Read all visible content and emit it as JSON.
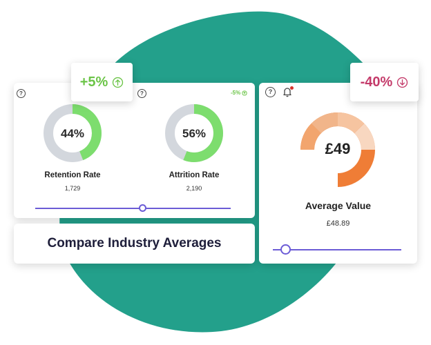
{
  "colors": {
    "blob": "#23a08b",
    "positive": "#6bc447",
    "negative": "#c43b6a",
    "slider": "#6b5bd6",
    "donut_gray": "#d3d7dd",
    "donut_green": "#7ddd6e",
    "donut_orange": "#ef7d36"
  },
  "left_card": {
    "retention": {
      "percent": "44%",
      "fraction": 0.44,
      "title": "Retention Rate",
      "value": "1,729"
    },
    "attrition": {
      "percent": "56%",
      "fraction": 0.56,
      "title": "Attrition Rate",
      "value": "2,190"
    },
    "small_delta": "-5%",
    "slider_level": 0.55
  },
  "up_badge": {
    "text": "+5%",
    "icon": "arrow-up-circle-icon"
  },
  "down_badge": {
    "text": "-40%",
    "icon": "arrow-down-circle-icon"
  },
  "right_card": {
    "center_label": "£49",
    "title": "Average Value",
    "value": "£48.89",
    "slider_level": 0.1,
    "has_notification": true
  },
  "compare_card": {
    "label": "Compare Industry Averages"
  }
}
